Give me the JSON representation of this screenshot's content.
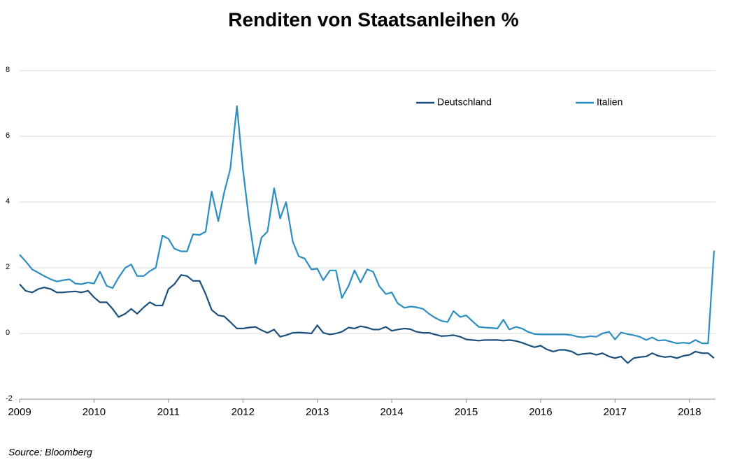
{
  "chart_data": {
    "type": "line",
    "title": "Renditen von Staatsanleihen  %",
    "source": "Source: Bloomberg",
    "x": [
      2009,
      2009.08,
      2009.17,
      2009.25,
      2009.33,
      2009.42,
      2009.5,
      2009.58,
      2009.67,
      2009.75,
      2009.83,
      2009.92,
      2010,
      2010.08,
      2010.17,
      2010.25,
      2010.33,
      2010.42,
      2010.5,
      2010.58,
      2010.67,
      2010.75,
      2010.83,
      2010.92,
      2011,
      2011.08,
      2011.17,
      2011.25,
      2011.33,
      2011.42,
      2011.5,
      2011.58,
      2011.67,
      2011.75,
      2011.83,
      2011.92,
      2012,
      2012.08,
      2012.17,
      2012.25,
      2012.33,
      2012.42,
      2012.5,
      2012.58,
      2012.67,
      2012.75,
      2012.83,
      2012.92,
      2013,
      2013.08,
      2013.17,
      2013.25,
      2013.33,
      2013.42,
      2013.5,
      2013.58,
      2013.67,
      2013.75,
      2013.83,
      2013.92,
      2014,
      2014.08,
      2014.17,
      2014.25,
      2014.33,
      2014.42,
      2014.5,
      2014.58,
      2014.67,
      2014.75,
      2014.83,
      2014.92,
      2015,
      2015.08,
      2015.17,
      2015.25,
      2015.33,
      2015.42,
      2015.5,
      2015.58,
      2015.67,
      2015.75,
      2015.83,
      2015.92,
      2016,
      2016.08,
      2016.17,
      2016.25,
      2016.33,
      2016.42,
      2016.5,
      2016.58,
      2016.67,
      2016.75,
      2016.83,
      2016.92,
      2017,
      2017.08,
      2017.17,
      2017.25,
      2017.33,
      2017.42,
      2017.5,
      2017.58,
      2017.67,
      2017.75,
      2017.83,
      2017.92,
      2018,
      2018.08,
      2018.17,
      2018.25,
      2018.33
    ],
    "series": [
      {
        "name": "Deutschland",
        "color": "#1b4f7c",
        "values": [
          1.5,
          1.3,
          1.25,
          1.35,
          1.4,
          1.35,
          1.25,
          1.25,
          1.27,
          1.28,
          1.25,
          1.3,
          1.1,
          0.95,
          0.95,
          0.75,
          0.5,
          0.6,
          0.75,
          0.6,
          0.8,
          0.95,
          0.85,
          0.85,
          1.35,
          1.5,
          1.78,
          1.75,
          1.6,
          1.6,
          1.2,
          0.72,
          0.55,
          0.52,
          0.35,
          0.15,
          0.15,
          0.18,
          0.2,
          0.1,
          0.02,
          0.12,
          -0.1,
          -0.05,
          0.02,
          0.03,
          0.02,
          0.0,
          0.25,
          0.02,
          -0.03,
          0.0,
          0.05,
          0.18,
          0.15,
          0.22,
          0.18,
          0.12,
          0.12,
          0.2,
          0.08,
          0.12,
          0.15,
          0.13,
          0.05,
          0.02,
          0.02,
          -0.03,
          -0.08,
          -0.07,
          -0.05,
          -0.1,
          -0.18,
          -0.2,
          -0.22,
          -0.2,
          -0.2,
          -0.2,
          -0.22,
          -0.2,
          -0.23,
          -0.28,
          -0.35,
          -0.42,
          -0.37,
          -0.48,
          -0.55,
          -0.5,
          -0.5,
          -0.55,
          -0.65,
          -0.62,
          -0.6,
          -0.65,
          -0.6,
          -0.7,
          -0.75,
          -0.7,
          -0.9,
          -0.75,
          -0.72,
          -0.7,
          -0.6,
          -0.68,
          -0.72,
          -0.7,
          -0.75,
          -0.68,
          -0.65,
          -0.55,
          -0.6,
          -0.6,
          -0.75
        ]
      },
      {
        "name": "Italien",
        "color": "#2b8ec3",
        "values": [
          2.4,
          2.2,
          1.95,
          1.85,
          1.75,
          1.65,
          1.58,
          1.62,
          1.65,
          1.52,
          1.5,
          1.55,
          1.52,
          1.88,
          1.45,
          1.38,
          1.7,
          2.0,
          2.1,
          1.75,
          1.75,
          1.9,
          2.0,
          2.98,
          2.88,
          2.58,
          2.5,
          2.5,
          3.02,
          3.0,
          3.1,
          4.32,
          3.42,
          4.3,
          5.0,
          6.92,
          5.0,
          3.5,
          2.12,
          2.92,
          3.1,
          4.42,
          3.5,
          4.0,
          2.8,
          2.35,
          2.28,
          1.95,
          1.97,
          1.62,
          1.92,
          1.92,
          1.08,
          1.45,
          1.92,
          1.55,
          1.95,
          1.88,
          1.45,
          1.2,
          1.25,
          0.92,
          0.78,
          0.82,
          0.8,
          0.75,
          0.6,
          0.48,
          0.38,
          0.35,
          0.68,
          0.5,
          0.55,
          0.38,
          0.2,
          0.18,
          0.17,
          0.15,
          0.42,
          0.12,
          0.2,
          0.15,
          0.05,
          -0.02,
          -0.03,
          -0.03,
          -0.03,
          -0.03,
          -0.03,
          -0.05,
          -0.1,
          -0.12,
          -0.08,
          -0.1,
          0.0,
          0.05,
          -0.18,
          0.03,
          -0.02,
          -0.05,
          -0.1,
          -0.2,
          -0.12,
          -0.22,
          -0.2,
          -0.25,
          -0.3,
          -0.28,
          -0.3,
          -0.2,
          -0.3,
          -0.3,
          2.52
        ]
      }
    ],
    "xlim": [
      2009,
      2018.35
    ],
    "xticks": [
      2009,
      2010,
      2011,
      2012,
      2013,
      2014,
      2015,
      2016,
      2017,
      2018
    ],
    "ylim": [
      -2,
      8
    ],
    "yticks": [
      -2,
      0,
      2,
      4,
      6,
      8
    ],
    "grid": true,
    "legend": "top-right"
  }
}
